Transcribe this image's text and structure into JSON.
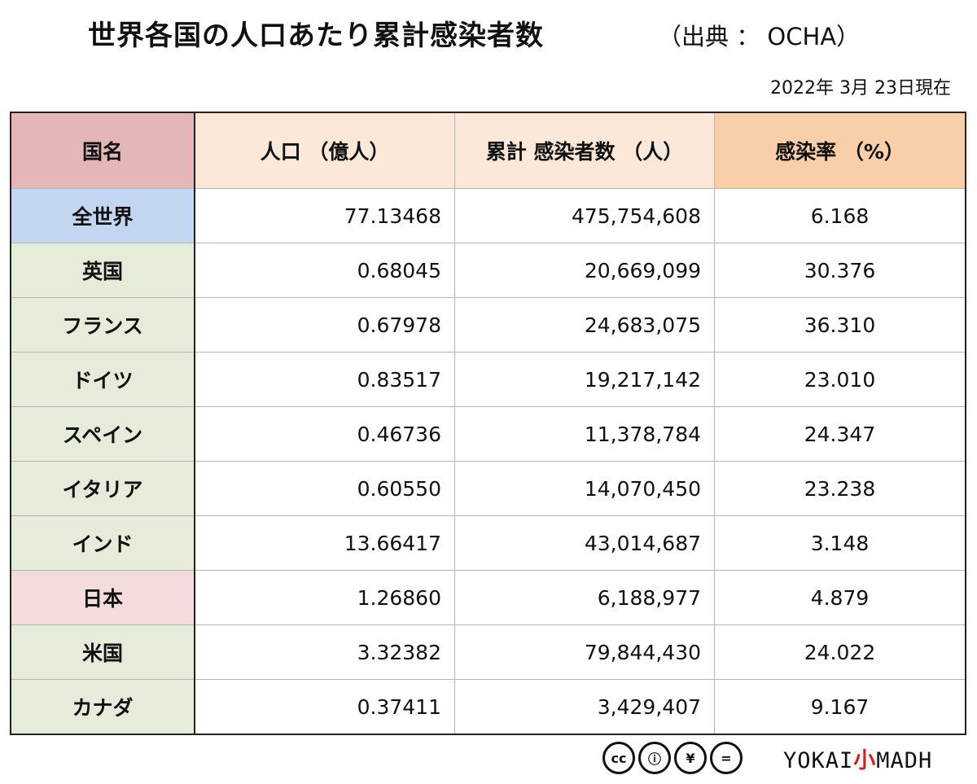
{
  "title": "世界各国の人口あたり累計感染者数",
  "source": "（出典 ： OCHA）",
  "date": "2022年 3月 23日現在",
  "table": {
    "headers": [
      "国名",
      "人口 （億人）",
      "累計 感染者数 （人）",
      "感染率 （%）"
    ],
    "rows": [
      {
        "name": "全世界",
        "population": "77.13468",
        "cases": "475,754,608",
        "rate": "6.168"
      },
      {
        "name": "英国",
        "population": "0.68045",
        "cases": "20,669,099",
        "rate": "30.376"
      },
      {
        "name": "フランス",
        "population": "0.67978",
        "cases": "24,683,075",
        "rate": "36.310"
      },
      {
        "name": "ドイツ",
        "population": "0.83517",
        "cases": "19,217,142",
        "rate": "23.010"
      },
      {
        "name": "スペイン",
        "population": "0.46736",
        "cases": "11,378,784",
        "rate": "24.347"
      },
      {
        "name": "イタリア",
        "population": "0.60550",
        "cases": "14,070,450",
        "rate": "23.238"
      },
      {
        "name": "インド",
        "population": "13.66417",
        "cases": "43,014,687",
        "rate": "3.148"
      },
      {
        "name": "日本",
        "population": "1.26860",
        "cases": "6,188,977",
        "rate": "4.879"
      },
      {
        "name": "米国",
        "population": "3.32382",
        "cases": "79,844,430",
        "rate": "24.022"
      },
      {
        "name": "カナダ",
        "population": "0.37411",
        "cases": "3,429,407",
        "rate": "9.167"
      }
    ]
  },
  "footer": {
    "license_icons": [
      "cc",
      "by",
      "nc",
      "nd"
    ],
    "license_glyphs": [
      "cc",
      "ⓘ",
      "¥",
      "="
    ],
    "logo_left": "YOKAI",
    "logo_mid": "小",
    "logo_right": "MADH"
  },
  "colors": {
    "header_country": "#e5b6b8",
    "header_mid": "#fce8d9",
    "header_rate": "#f8cfa9",
    "world": "#c3d6ef",
    "japan": "#f4dcdd",
    "other": "#e5edda"
  }
}
